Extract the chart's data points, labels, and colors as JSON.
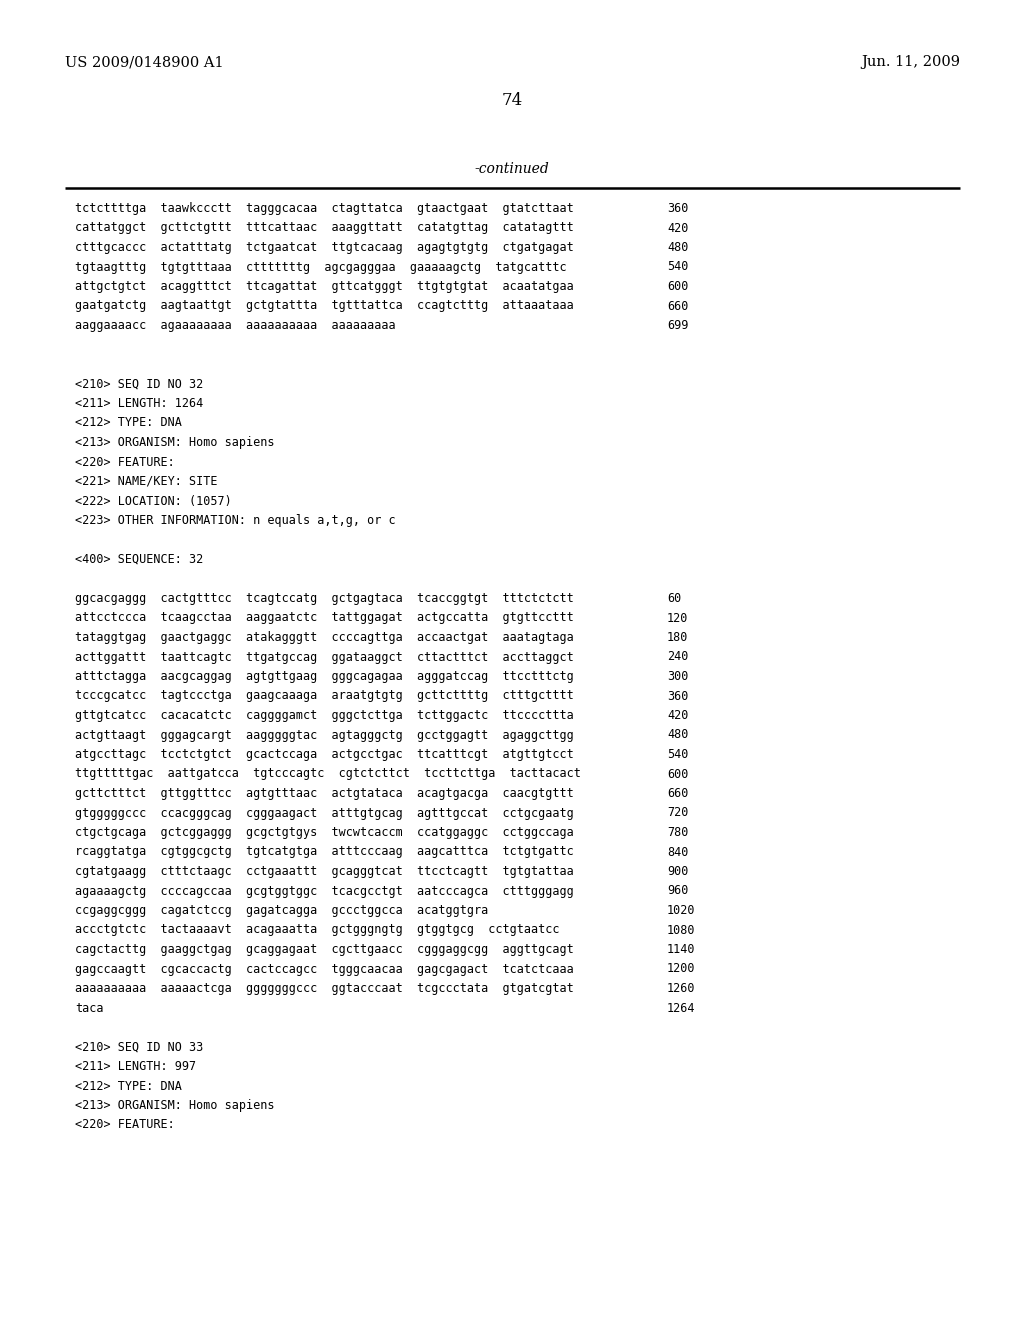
{
  "bg_color": "#ffffff",
  "header_left": "US 2009/0148900 A1",
  "header_right": "Jun. 11, 2009",
  "page_number": "74",
  "continued_label": "-continued",
  "content_lines": [
    {
      "text": "tctcttttga  taawkccctt  tagggcacaa  ctagttatca  gtaactgaat  gtatcttaat",
      "num": "360"
    },
    {
      "text": "cattatggct  gcttctgttt  tttcattaac  aaaggttatt  catatgttag  catatagttt",
      "num": "420"
    },
    {
      "text": "ctttgcaccc  actatttatg  tctgaatcat  ttgtcacaag  agagtgtgtg  ctgatgagat",
      "num": "480"
    },
    {
      "text": "tgtaagtttg  tgtgtttaaa  ctttttttg  agcgagggaa  gaaaaagctg  tatgcatttc",
      "num": "540"
    },
    {
      "text": "attgctgtct  acaggtttct  ttcagattat  gttcatgggt  ttgtgtgtat  acaatatgaa",
      "num": "600"
    },
    {
      "text": "gaatgatctg  aagtaattgt  gctgtattta  tgtttattca  ccagtctttg  attaaataaa",
      "num": "660"
    },
    {
      "text": "aaggaaaacc  agaaaaaaaa  aaaaaaaaaa  aaaaaaaaa",
      "num": "699"
    },
    {
      "text": "",
      "num": ""
    },
    {
      "text": "",
      "num": ""
    },
    {
      "text": "<210> SEQ ID NO 32",
      "num": ""
    },
    {
      "text": "<211> LENGTH: 1264",
      "num": ""
    },
    {
      "text": "<212> TYPE: DNA",
      "num": ""
    },
    {
      "text": "<213> ORGANISM: Homo sapiens",
      "num": ""
    },
    {
      "text": "<220> FEATURE:",
      "num": ""
    },
    {
      "text": "<221> NAME/KEY: SITE",
      "num": ""
    },
    {
      "text": "<222> LOCATION: (1057)",
      "num": ""
    },
    {
      "text": "<223> OTHER INFORMATION: n equals a,t,g, or c",
      "num": ""
    },
    {
      "text": "",
      "num": ""
    },
    {
      "text": "<400> SEQUENCE: 32",
      "num": ""
    },
    {
      "text": "",
      "num": ""
    },
    {
      "text": "ggcacgaggg  cactgtttcc  tcagtccatg  gctgagtaca  tcaccggtgt  tttctctctt",
      "num": "60"
    },
    {
      "text": "attcctccca  tcaagcctaa  aaggaatctc  tattggagat  actgccatta  gtgttccttt",
      "num": "120"
    },
    {
      "text": "tataggtgag  gaactgaggc  atakagggtt  ccccagttga  accaactgat  aaatagtaga",
      "num": "180"
    },
    {
      "text": "acttggattt  taattcagtc  ttgatgccag  ggataaggct  cttactttct  accttaggct",
      "num": "240"
    },
    {
      "text": "atttctagga  aacgcaggag  agtgttgaag  gggcagagaa  agggatccag  ttcctttctg",
      "num": "300"
    },
    {
      "text": "tcccgcatcc  tagtccctga  gaagcaaaga  araatgtgtg  gcttcttttg  ctttgctttt",
      "num": "360"
    },
    {
      "text": "gttgtcatcc  cacacatctc  caggggamct  gggctcttga  tcttggactc  ttccccttta",
      "num": "420"
    },
    {
      "text": "actgttaagt  gggagcargt  aagggggtac  agtagggctg  gcctggagtt  agaggcttgg",
      "num": "480"
    },
    {
      "text": "atgccttagc  tcctctgtct  gcactccaga  actgcctgac  ttcatttcgt  atgttgtcct",
      "num": "540"
    },
    {
      "text": "ttgtttttgac  aattgatcca  tgtcccagtc  cgtctcttct  tccttcttga  tacttacact",
      "num": "600"
    },
    {
      "text": "gcttctttct  gttggtttcc  agtgtttaac  actgtataca  acagtgacga  caacgtgttt",
      "num": "660"
    },
    {
      "text": "gtgggggccc  ccacgggcag  cgggaagact  atttgtgcag  agtttgccat  cctgcgaatg",
      "num": "720"
    },
    {
      "text": "ctgctgcaga  gctcggaggg  gcgctgtgys  twcwtcaccm  ccatggaggc  cctggccaga",
      "num": "780"
    },
    {
      "text": "rcaggtatga  cgtggcgctg  tgtcatgtga  atttcccaag  aagcatttca  tctgtgattc",
      "num": "840"
    },
    {
      "text": "cgtatgaagg  ctttctaagc  cctgaaattt  gcagggtcat  ttcctcagtt  tgtgtattaa",
      "num": "900"
    },
    {
      "text": "agaaaagctg  ccccagccaa  gcgtggtggc  tcacgcctgt  aatcccagca  ctttgggagg",
      "num": "960"
    },
    {
      "text": "ccgaggcggg  cagatctccg  gagatcagga  gccctggcca  acatggtgra",
      "num": "1020"
    },
    {
      "text": "accctgtctc  tactaaaavt  acagaaatta  gctgggngtg  gtggtgcg  cctgtaatcc",
      "num": "1080"
    },
    {
      "text": "cagctacttg  gaaggctgag  gcaggagaat  cgcttgaacc  cgggaggcgg  aggttgcagt",
      "num": "1140"
    },
    {
      "text": "gagccaagtt  cgcaccactg  cactccagcc  tgggcaacaa  gagcgagact  tcatctcaaa",
      "num": "1200"
    },
    {
      "text": "aaaaaaaaaa  aaaaactcga  gggggggccc  ggtacccaat  tcgccctata  gtgatcgtat",
      "num": "1260"
    },
    {
      "text": "taca",
      "num": "1264"
    },
    {
      "text": "",
      "num": ""
    },
    {
      "text": "<210> SEQ ID NO 33",
      "num": ""
    },
    {
      "text": "<211> LENGTH: 997",
      "num": ""
    },
    {
      "text": "<212> TYPE: DNA",
      "num": ""
    },
    {
      "text": "<213> ORGANISM: Homo sapiens",
      "num": ""
    },
    {
      "text": "<220> FEATURE:",
      "num": ""
    }
  ],
  "font_size_header": 10.5,
  "font_size_body": 8.5,
  "font_size_page_num": 12,
  "font_size_continued": 10
}
